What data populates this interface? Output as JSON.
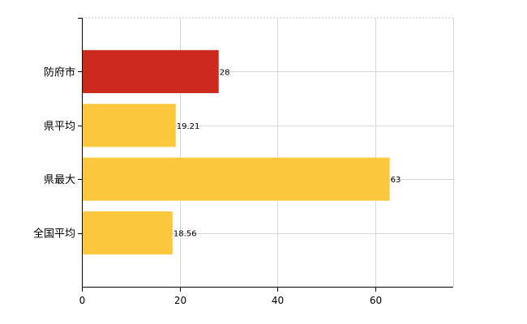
{
  "chart_data": {
    "type": "bar",
    "orientation": "horizontal",
    "categories": [
      "防府市",
      "県平均",
      "県最大",
      "全国平均"
    ],
    "values": [
      28,
      19.21,
      63,
      18.56
    ],
    "data_labels": [
      "28",
      "19.21",
      "63",
      "18.56"
    ],
    "bar_colors": [
      "#cc2a1e",
      "#fbc83d",
      "#fbc83d",
      "#fbc83d"
    ],
    "xlim": [
      0,
      76
    ],
    "xticks": [
      0,
      20,
      40,
      60
    ],
    "xtick_labels": [
      "0",
      "20",
      "40",
      "60"
    ],
    "grid": true,
    "legend": "none",
    "title": "",
    "xlabel": "",
    "ylabel": ""
  }
}
